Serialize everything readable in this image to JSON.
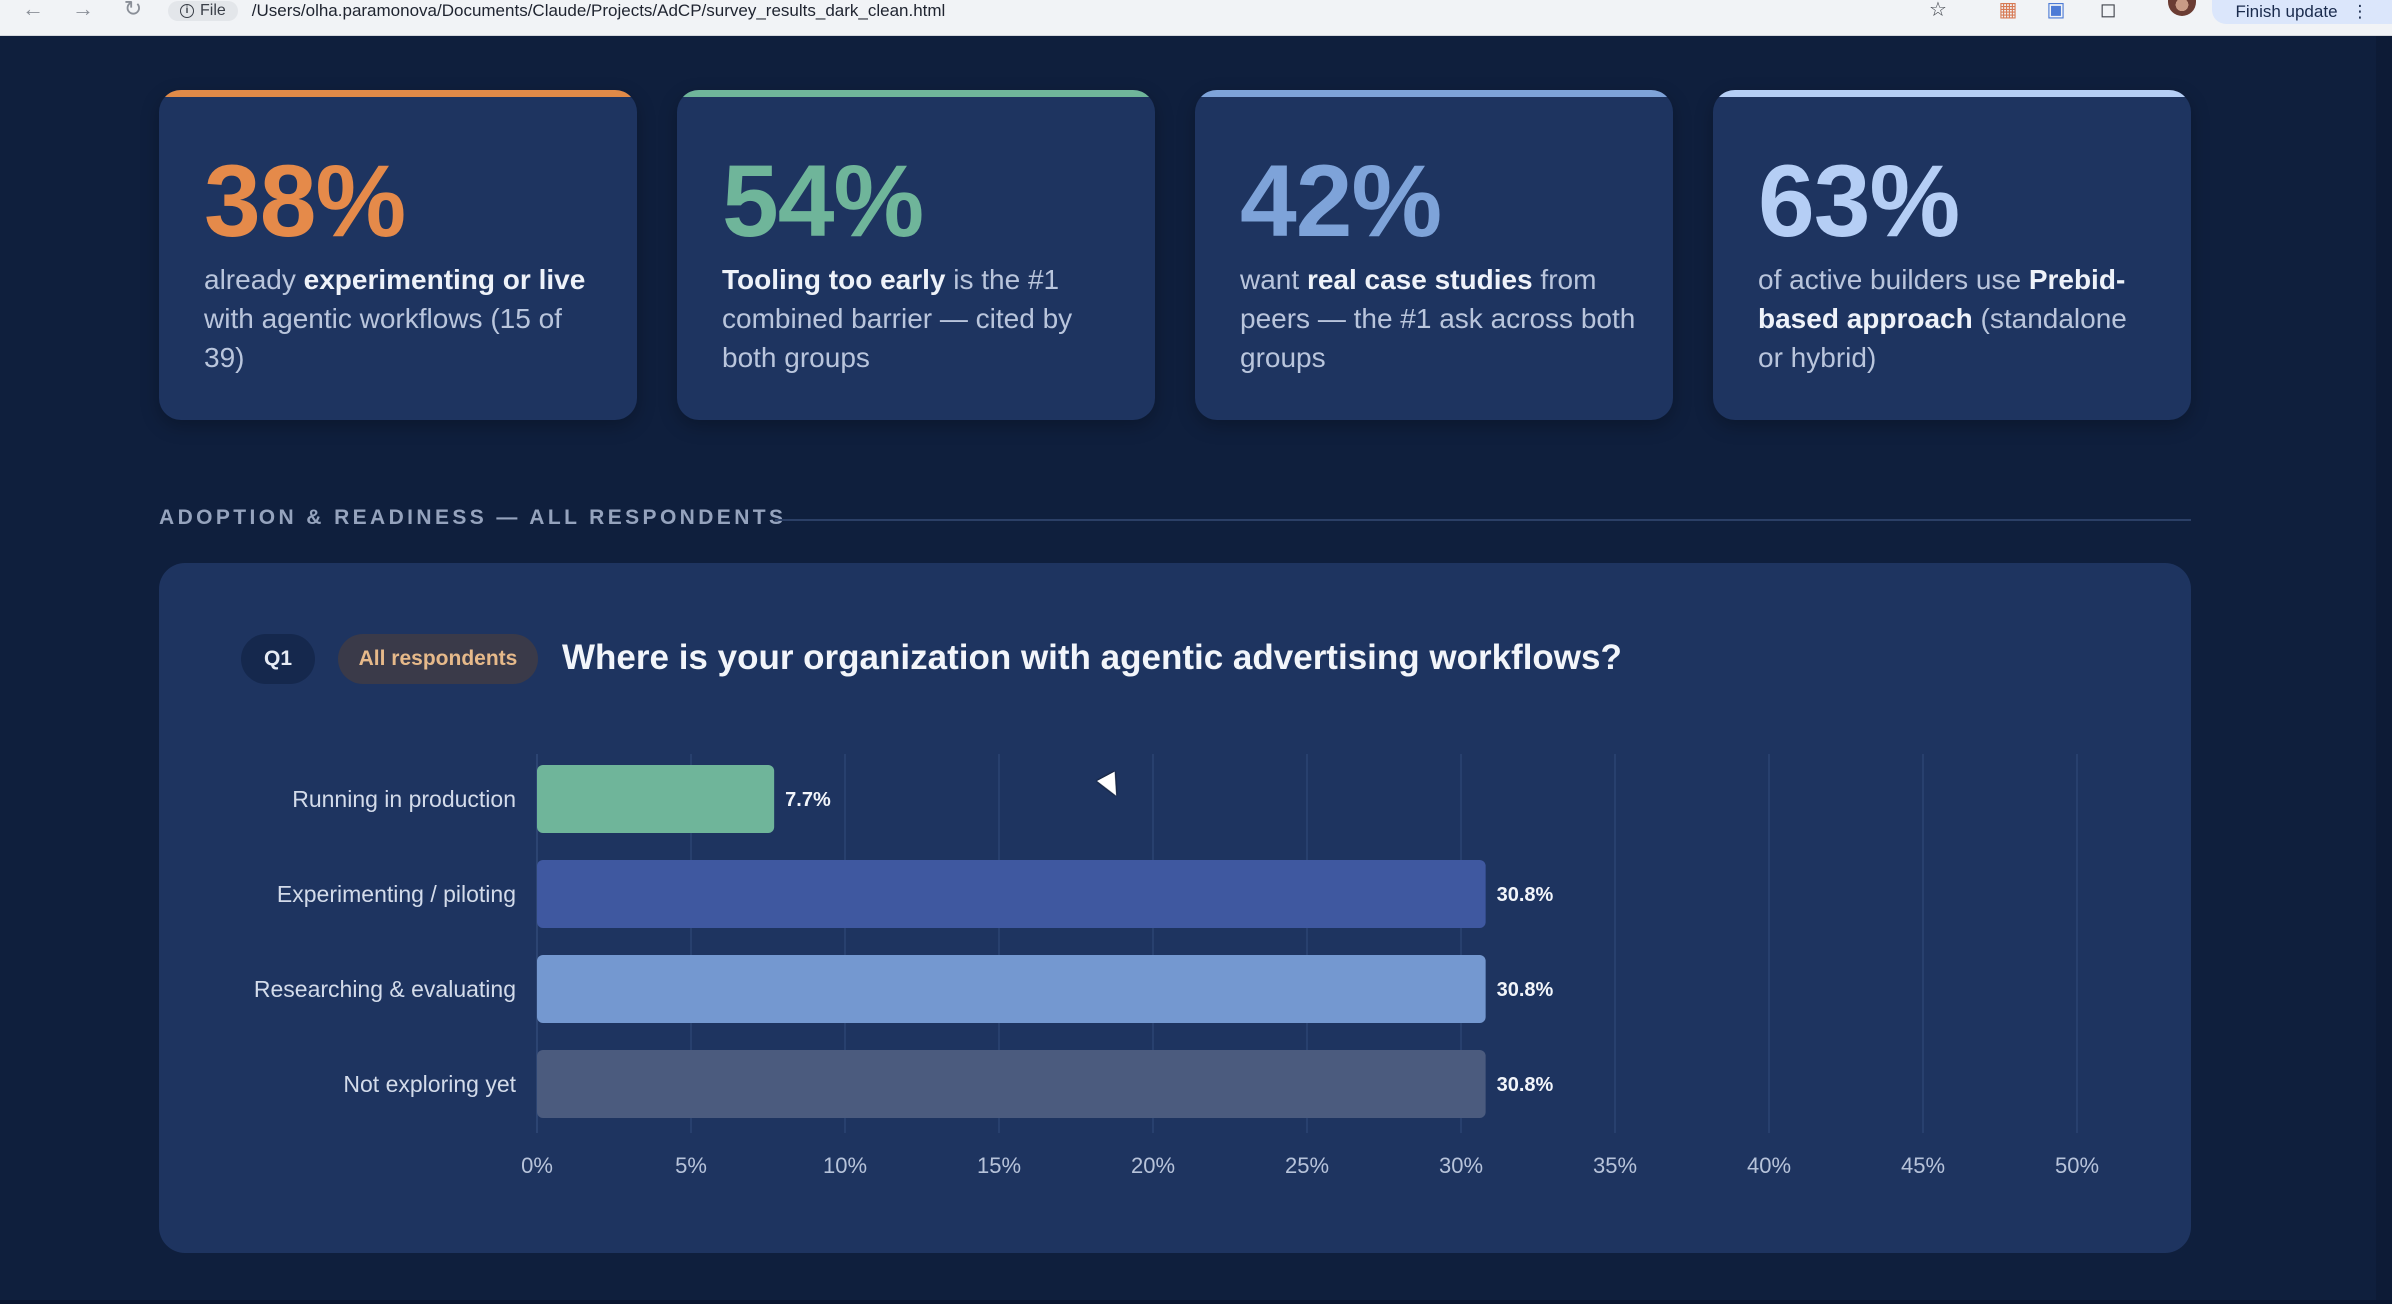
{
  "browser": {
    "back_icon": "arrow-left-icon",
    "forward_icon": "arrow-right-icon",
    "reload_icon": "reload-icon",
    "scheme_label": "File",
    "url": "/Users/olha.paramonova/Documents/Claude/Projects/AdCP/survey_results_dark_clean.html",
    "update_label": "Finish update"
  },
  "stats": [
    {
      "value": "38%",
      "accent": "#e58a4a",
      "line_color": "#e08a48",
      "parts": [
        {
          "t": "already "
        },
        {
          "t": "experimenting or live",
          "b": true
        },
        {
          "t": " with agentic workflows (15 of 39)"
        }
      ]
    },
    {
      "value": "54%",
      "accent": "#6fb59a",
      "line_color": "#6fb59a",
      "parts": [
        {
          "t": "Tooling too early",
          "b": true
        },
        {
          "t": " is the #1 combined barrier — cited by both groups"
        }
      ]
    },
    {
      "value": "42%",
      "accent": "#7ea3d9",
      "line_color": "#7ea3d9",
      "parts": [
        {
          "t": "want "
        },
        {
          "t": "real case studies",
          "b": true
        },
        {
          "t": " from peers — the #1 ask across both groups"
        }
      ]
    },
    {
      "value": "63%",
      "accent": "#b5cef5",
      "line_color": "#b5cef5",
      "parts": [
        {
          "t": "of active builders use "
        },
        {
          "t": "Prebid-based approach",
          "b": true
        },
        {
          "t": " (standalone or hybrid)"
        }
      ]
    }
  ],
  "section": {
    "title": "ADOPTION & READINESS — ALL RESPONDENTS"
  },
  "question": {
    "badge": "Q1",
    "audience": "All respondents",
    "text": "Where is your organization with agentic advertising workflows?"
  },
  "chart_data": {
    "type": "bar",
    "orientation": "horizontal",
    "categories": [
      "Running in production",
      "Experimenting / piloting",
      "Researching & evaluating",
      "Not exploring yet"
    ],
    "values": [
      7.7,
      30.8,
      30.8,
      30.8
    ],
    "value_labels": [
      "7.7%",
      "30.8%",
      "30.8%",
      "30.8%"
    ],
    "colors": [
      "#6fb59a",
      "#3f58a0",
      "#7498d0",
      "#4b5b7e"
    ],
    "x_ticks": [
      "0%",
      "5%",
      "10%",
      "15%",
      "20%",
      "25%",
      "30%",
      "35%",
      "40%",
      "45%",
      "50%"
    ],
    "xlim": [
      0,
      50
    ],
    "grid": true
  }
}
